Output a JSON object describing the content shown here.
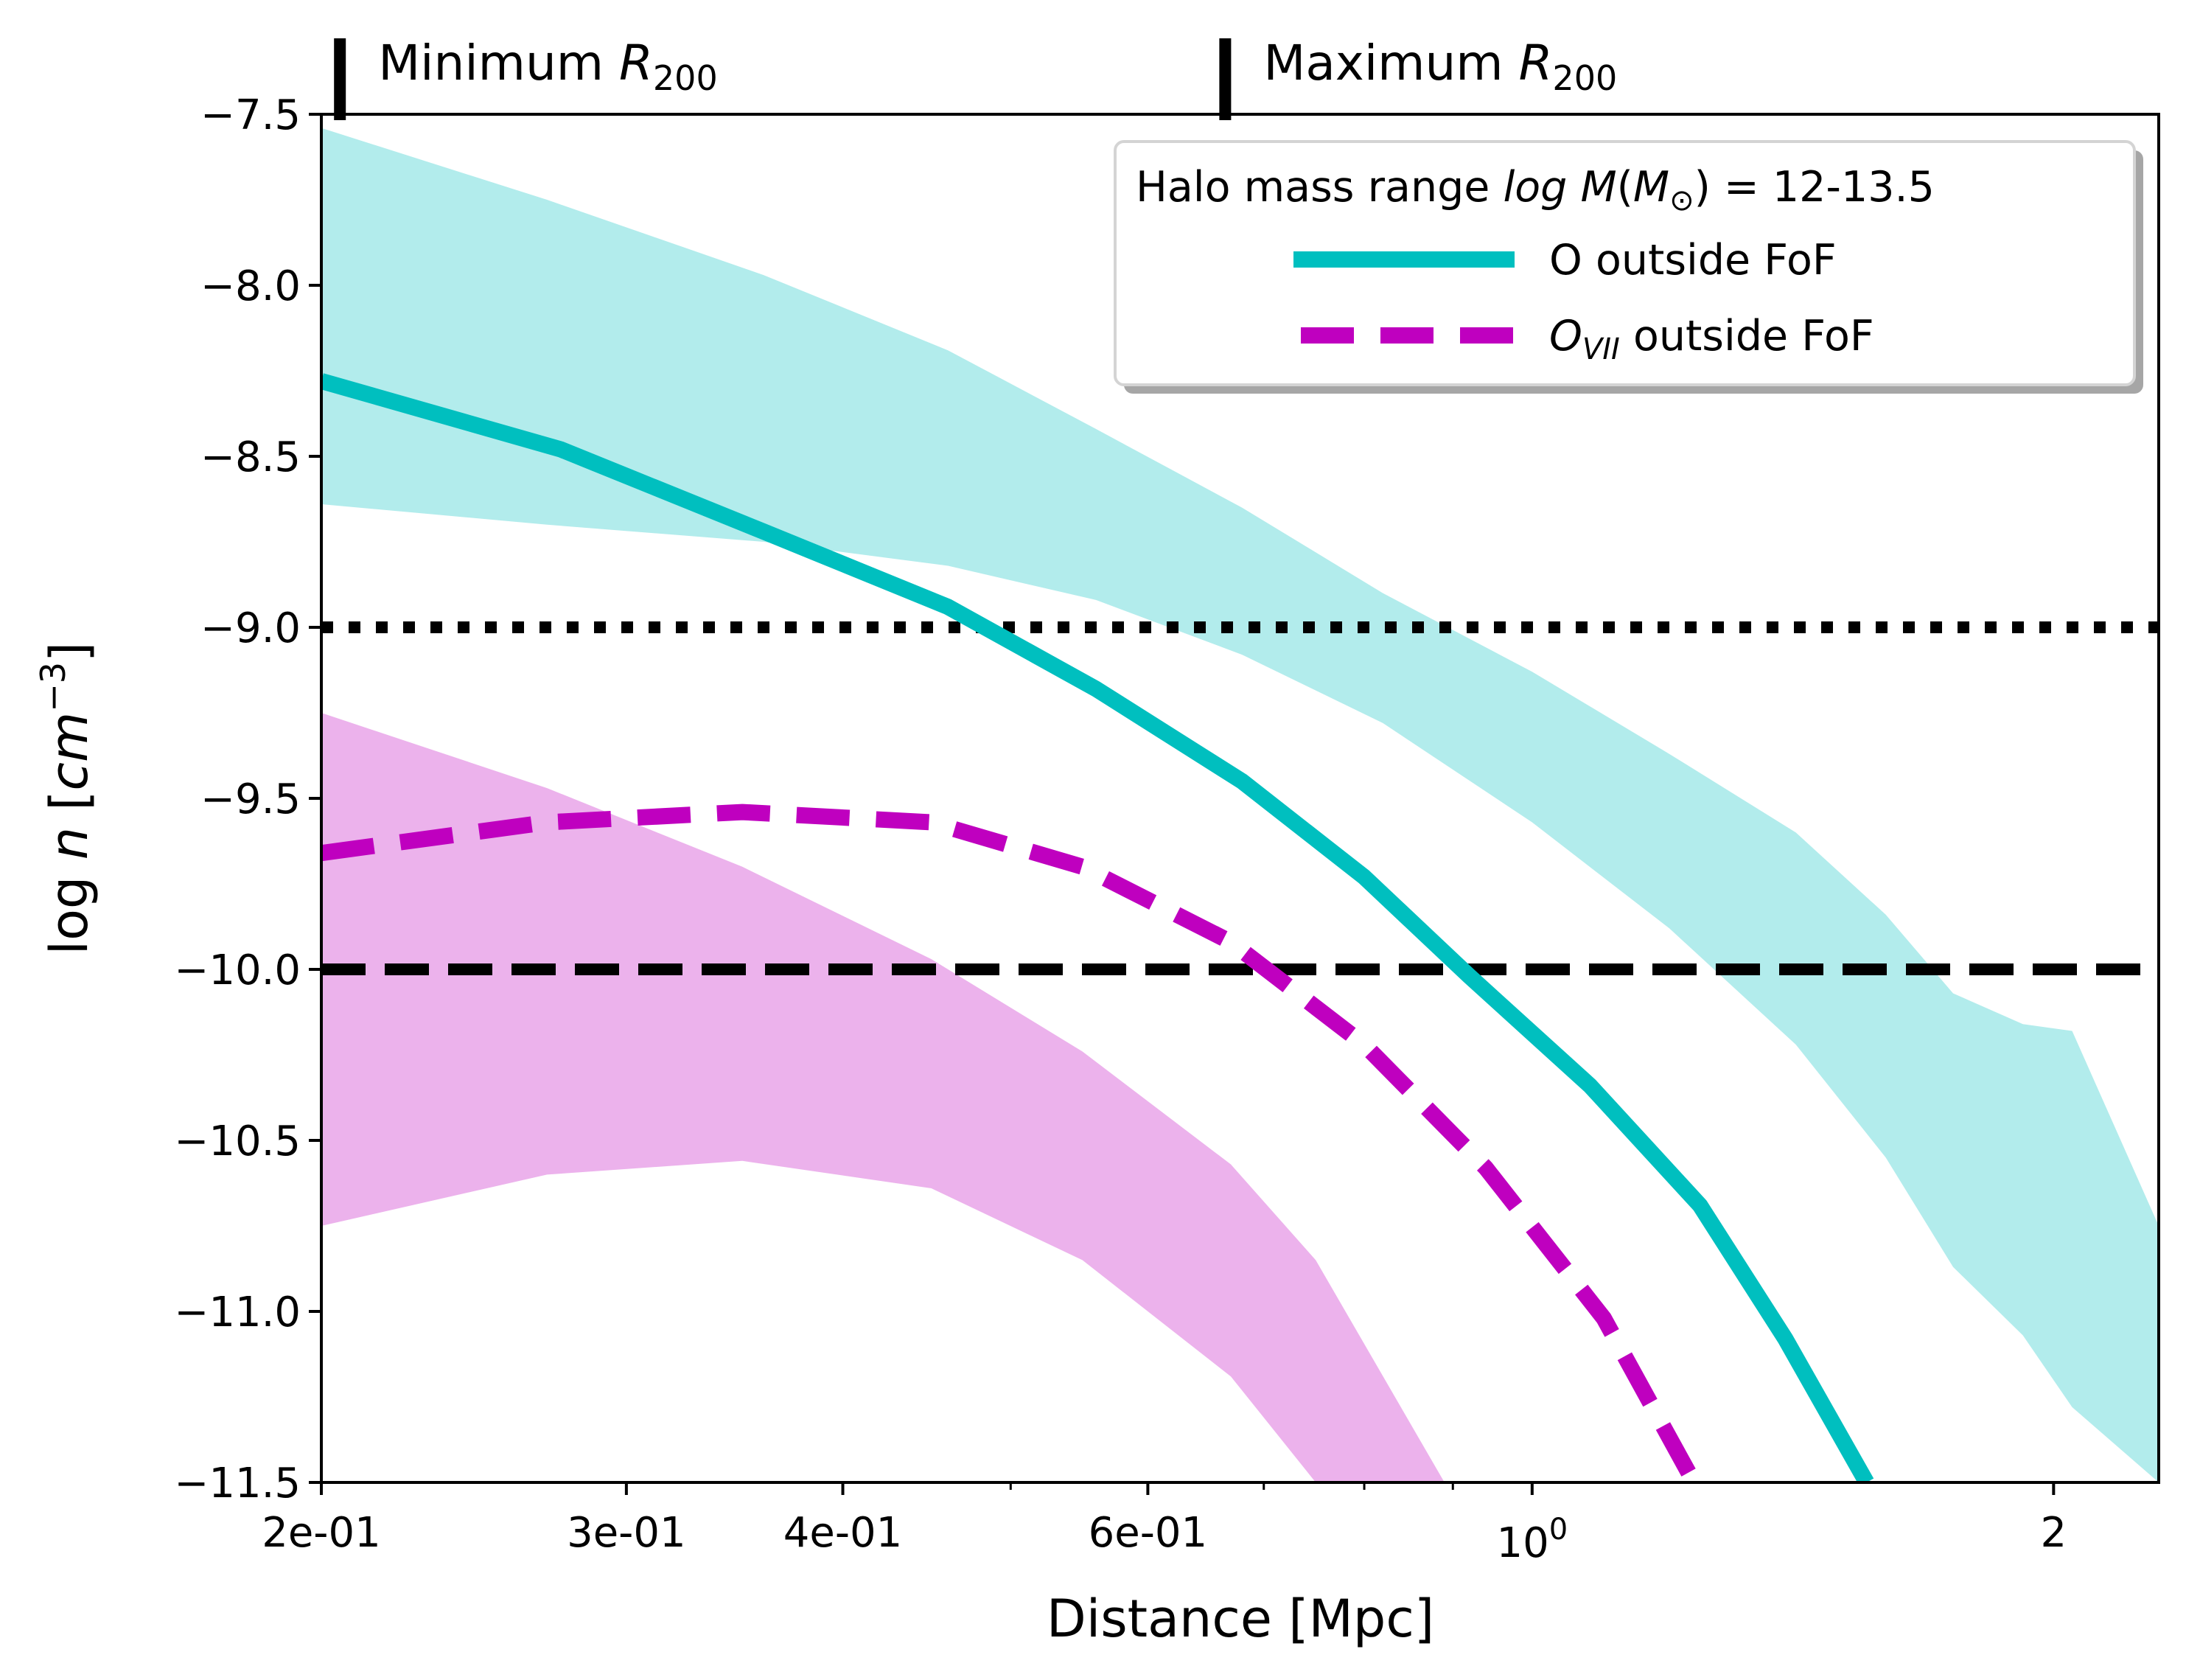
{
  "chart_data": {
    "type": "line",
    "xlabel": "Distance [Mpc]",
    "ylabel": "log n [cm⁻³]",
    "ylabel_parts": {
      "prefix": "log ",
      "var": "n",
      "open": " [",
      "unit": "cm",
      "exp": "−3",
      "close": "]"
    },
    "xscale": "log",
    "xlim": [
      0.2,
      2.3
    ],
    "ylim": [
      -11.5,
      -7.5
    ],
    "xticks": [
      {
        "value": 0.2,
        "label": "2e-01"
      },
      {
        "value": 0.3,
        "label": "3e-01"
      },
      {
        "value": 0.4,
        "label": "4e-01"
      },
      {
        "value": 0.6,
        "label": "6e-01"
      },
      {
        "value": 1.0,
        "label": "10",
        "sup": "0"
      },
      {
        "value": 2.0,
        "label": "2"
      }
    ],
    "minor_xticks": [
      0.5,
      0.7,
      0.8,
      0.9
    ],
    "yticks": [
      {
        "value": -7.5,
        "label": "−7.5"
      },
      {
        "value": -8.0,
        "label": "−8.0"
      },
      {
        "value": -8.5,
        "label": "−8.5"
      },
      {
        "value": -9.0,
        "label": "−9.0"
      },
      {
        "value": -9.5,
        "label": "−9.5"
      },
      {
        "value": -10.0,
        "label": "−10.0"
      },
      {
        "value": -10.5,
        "label": "−10.5"
      },
      {
        "value": -11.0,
        "label": "−11.0"
      },
      {
        "value": -11.5,
        "label": "−11.5"
      }
    ],
    "series": [
      {
        "name": "O outside FoF",
        "color": "#00bfbf",
        "style": "solid",
        "x": [
          0.2,
          0.275,
          0.36,
          0.46,
          0.56,
          0.68,
          0.8,
          0.92,
          1.08,
          1.25,
          1.4,
          1.56
        ],
        "y": [
          -8.28,
          -8.48,
          -8.72,
          -8.94,
          -9.18,
          -9.45,
          -9.73,
          -10.02,
          -10.34,
          -10.69,
          -11.08,
          -11.5
        ]
      },
      {
        "name": "O_VII outside FoF",
        "color": "#bf00bf",
        "style": "dashed",
        "x": [
          0.2,
          0.27,
          0.35,
          0.45,
          0.55,
          0.67,
          0.8,
          0.94,
          1.1,
          1.24
        ],
        "y": [
          -9.66,
          -9.57,
          -9.54,
          -9.57,
          -9.7,
          -9.92,
          -10.22,
          -10.58,
          -11.02,
          -11.5
        ]
      }
    ],
    "bands": [
      {
        "name": "O outside FoF range",
        "color": "#00bfbf",
        "opacity": 0.3,
        "x": [
          0.2,
          0.27,
          0.36,
          0.46,
          0.56,
          0.68,
          0.82,
          1.0,
          1.2,
          1.42,
          1.6,
          1.75,
          1.92,
          2.05,
          2.3
        ],
        "upper": [
          -7.54,
          -7.75,
          -7.97,
          -8.19,
          -8.42,
          -8.65,
          -8.9,
          -9.13,
          -9.37,
          -9.6,
          -9.84,
          -10.07,
          -10.16,
          -10.18,
          -10.75
        ],
        "lower": [
          -8.64,
          -8.7,
          -8.75,
          -8.82,
          -8.92,
          -9.08,
          -9.28,
          -9.57,
          -9.88,
          -10.22,
          -10.55,
          -10.87,
          -11.07,
          -11.28,
          -11.5
        ]
      },
      {
        "name": "O_VII outside FoF range",
        "color": "#bf00bf",
        "opacity": 0.3,
        "x": [
          0.2,
          0.27,
          0.35,
          0.45,
          0.55,
          0.67,
          0.75,
          0.89
        ],
        "upper": [
          -9.25,
          -9.47,
          -9.7,
          -9.97,
          -10.24,
          -10.57,
          -10.85,
          -11.5
        ],
        "lower": [
          -10.75,
          -10.6,
          -10.56,
          -10.64,
          -10.85,
          -11.19,
          -11.5,
          -11.5
        ]
      }
    ],
    "hlines": [
      {
        "y": -9.0,
        "style": "dotted",
        "color": "#000000"
      },
      {
        "y": -10.0,
        "style": "dashed",
        "color": "#000000"
      }
    ],
    "markers": [
      {
        "x": 0.205,
        "label": "Minimum ",
        "var": "R",
        "sub": "200"
      },
      {
        "x": 0.665,
        "label": "Maximum ",
        "var": "R",
        "sub": "200"
      }
    ],
    "legend": {
      "title_prefix": "Halo mass range ",
      "title_math": "log M",
      "title_open": "(",
      "title_msym": "M",
      "title_sub": "⊙",
      "title_suffix": ") = 12-13.5",
      "placement": "upper right",
      "entries": [
        {
          "label": "O outside FoF"
        },
        {
          "label_var": "O",
          "label_sub": "VII",
          "label_rest": " outside FoF"
        }
      ]
    }
  }
}
